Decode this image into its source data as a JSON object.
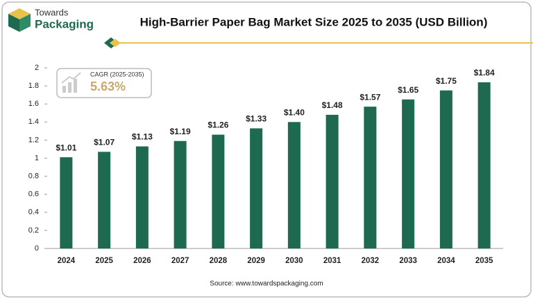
{
  "header": {
    "brand_top": "Towards",
    "brand_bottom": "Packaging"
  },
  "chart_data": {
    "type": "bar",
    "title": "High-Barrier Paper Bag Market Size 2025 to 2035 (USD Billion)",
    "categories": [
      "2024",
      "2025",
      "2026",
      "2027",
      "2028",
      "2029",
      "2030",
      "2031",
      "2032",
      "2033",
      "2034",
      "2035"
    ],
    "values": [
      1.01,
      1.07,
      1.13,
      1.19,
      1.26,
      1.33,
      1.4,
      1.48,
      1.57,
      1.65,
      1.75,
      1.84
    ],
    "value_labels": [
      "$1.01",
      "$1.07",
      "$1.13",
      "$1.19",
      "$1.26",
      "$1.33",
      "$1.40",
      "$1.48",
      "$1.57",
      "$1.65",
      "$1.75",
      "$1.84"
    ],
    "color": "#1d6a51",
    "ylim": [
      0,
      2
    ],
    "yticks": [
      0,
      0.2,
      0.4,
      0.6,
      0.8,
      1,
      1.2,
      1.4,
      1.6,
      1.8,
      2
    ],
    "grid": false,
    "annotation": {
      "label": "CAGR (2025-2035)",
      "value": "5.63%"
    },
    "source": "Source: www.towardspackaging.com"
  }
}
